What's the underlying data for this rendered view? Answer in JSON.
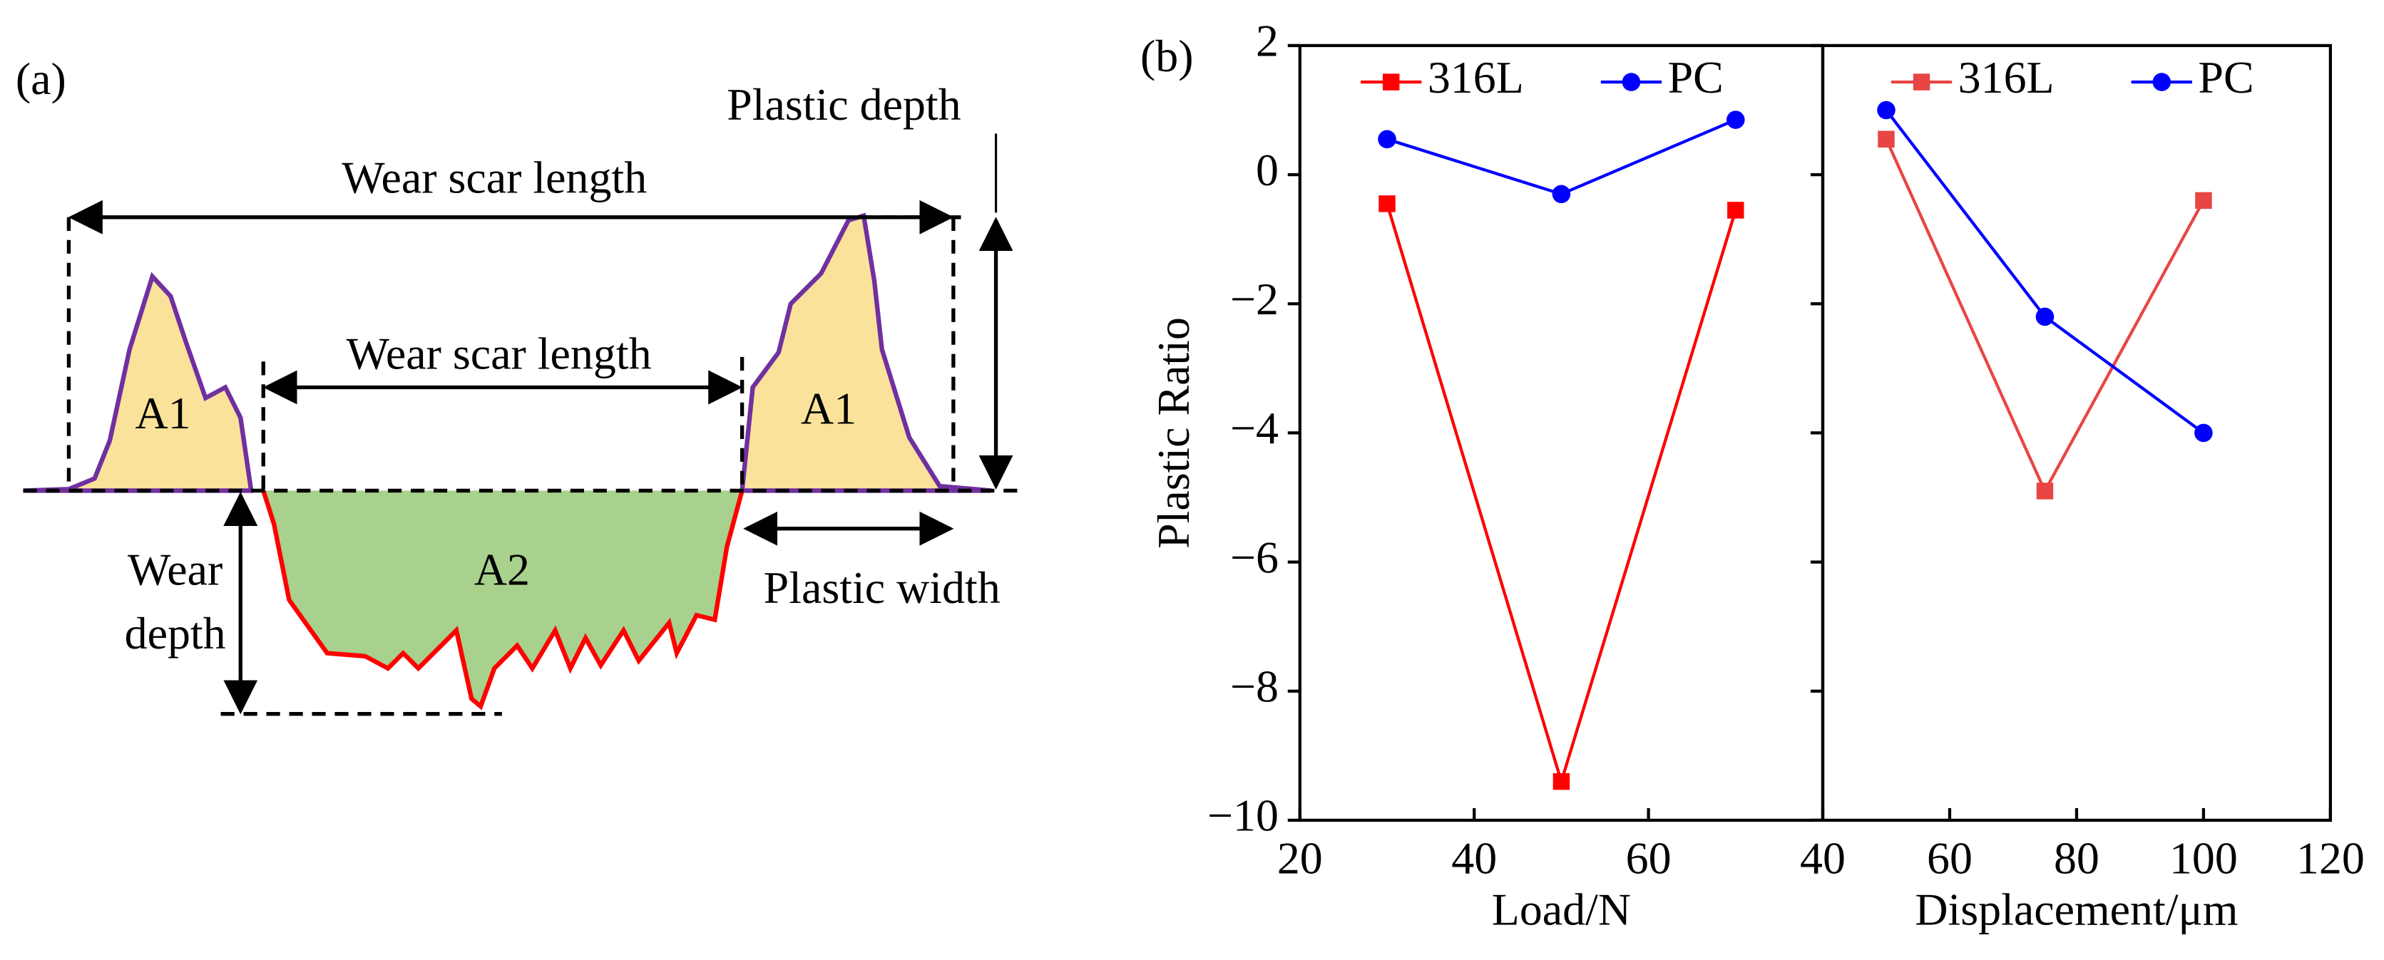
{
  "panel_labels": [
    "(a)",
    "(b)"
  ],
  "diagram": {
    "labels": [
      "Wear scar length",
      "Wear scar length",
      "Plastic depth",
      "A1",
      "A1",
      "A2",
      "Wear",
      "depth",
      "Plastic width"
    ]
  },
  "chart_data": [
    {
      "type": "line",
      "x_label": "Load/N",
      "y_label": "Plastic Ratio",
      "x": [
        30,
        50,
        70
      ],
      "xlim": [
        20,
        80
      ],
      "xticks": [
        20,
        40,
        60
      ],
      "ylim": [
        -10,
        2
      ],
      "yticks": [
        {
          "value": -10,
          "label": "−10"
        },
        {
          "value": -8,
          "label": "−8"
        },
        {
          "value": -6,
          "label": "−6"
        },
        {
          "value": -4,
          "label": "−4"
        },
        {
          "value": -2,
          "label": "−2"
        },
        0,
        2
      ],
      "series": [
        {
          "name": "316L",
          "color": "#ff0000",
          "marker": "square",
          "values": [
            -0.45,
            -9.4,
            -0.55
          ]
        },
        {
          "name": "PC",
          "color": "#0000ff",
          "marker": "circle",
          "values": [
            0.55,
            -0.3,
            0.85
          ]
        }
      ]
    },
    {
      "type": "line",
      "x_label": "Displacement/μm",
      "x": [
        50,
        75,
        100
      ],
      "xlim": [
        40,
        120
      ],
      "xticks": [
        40,
        60,
        80,
        100,
        120
      ],
      "ylim": [
        -10,
        2
      ],
      "series": [
        {
          "name": "316L",
          "color": "#e84545",
          "marker": "square",
          "values": [
            0.55,
            -4.9,
            -0.4
          ]
        },
        {
          "name": "PC",
          "color": "#0000ff",
          "marker": "circle",
          "values": [
            1.0,
            -2.2,
            -4.0
          ]
        }
      ]
    }
  ]
}
